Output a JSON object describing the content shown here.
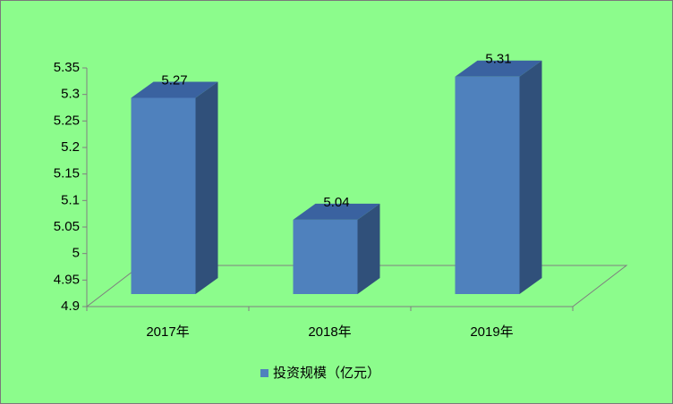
{
  "chart_data": {
    "type": "bar3d",
    "categories": [
      "2017年",
      "2018年",
      "2019年"
    ],
    "series": [
      {
        "name": "投资规模（亿元）",
        "color": "#4f81bd",
        "values": [
          5.27,
          5.04,
          5.31
        ]
      }
    ],
    "ylim": [
      4.9,
      5.35
    ],
    "yticks": [
      4.9,
      4.95,
      5,
      5.05,
      5.1,
      5.15,
      5.2,
      5.25,
      5.3,
      5.35
    ],
    "legend": "bottom"
  }
}
